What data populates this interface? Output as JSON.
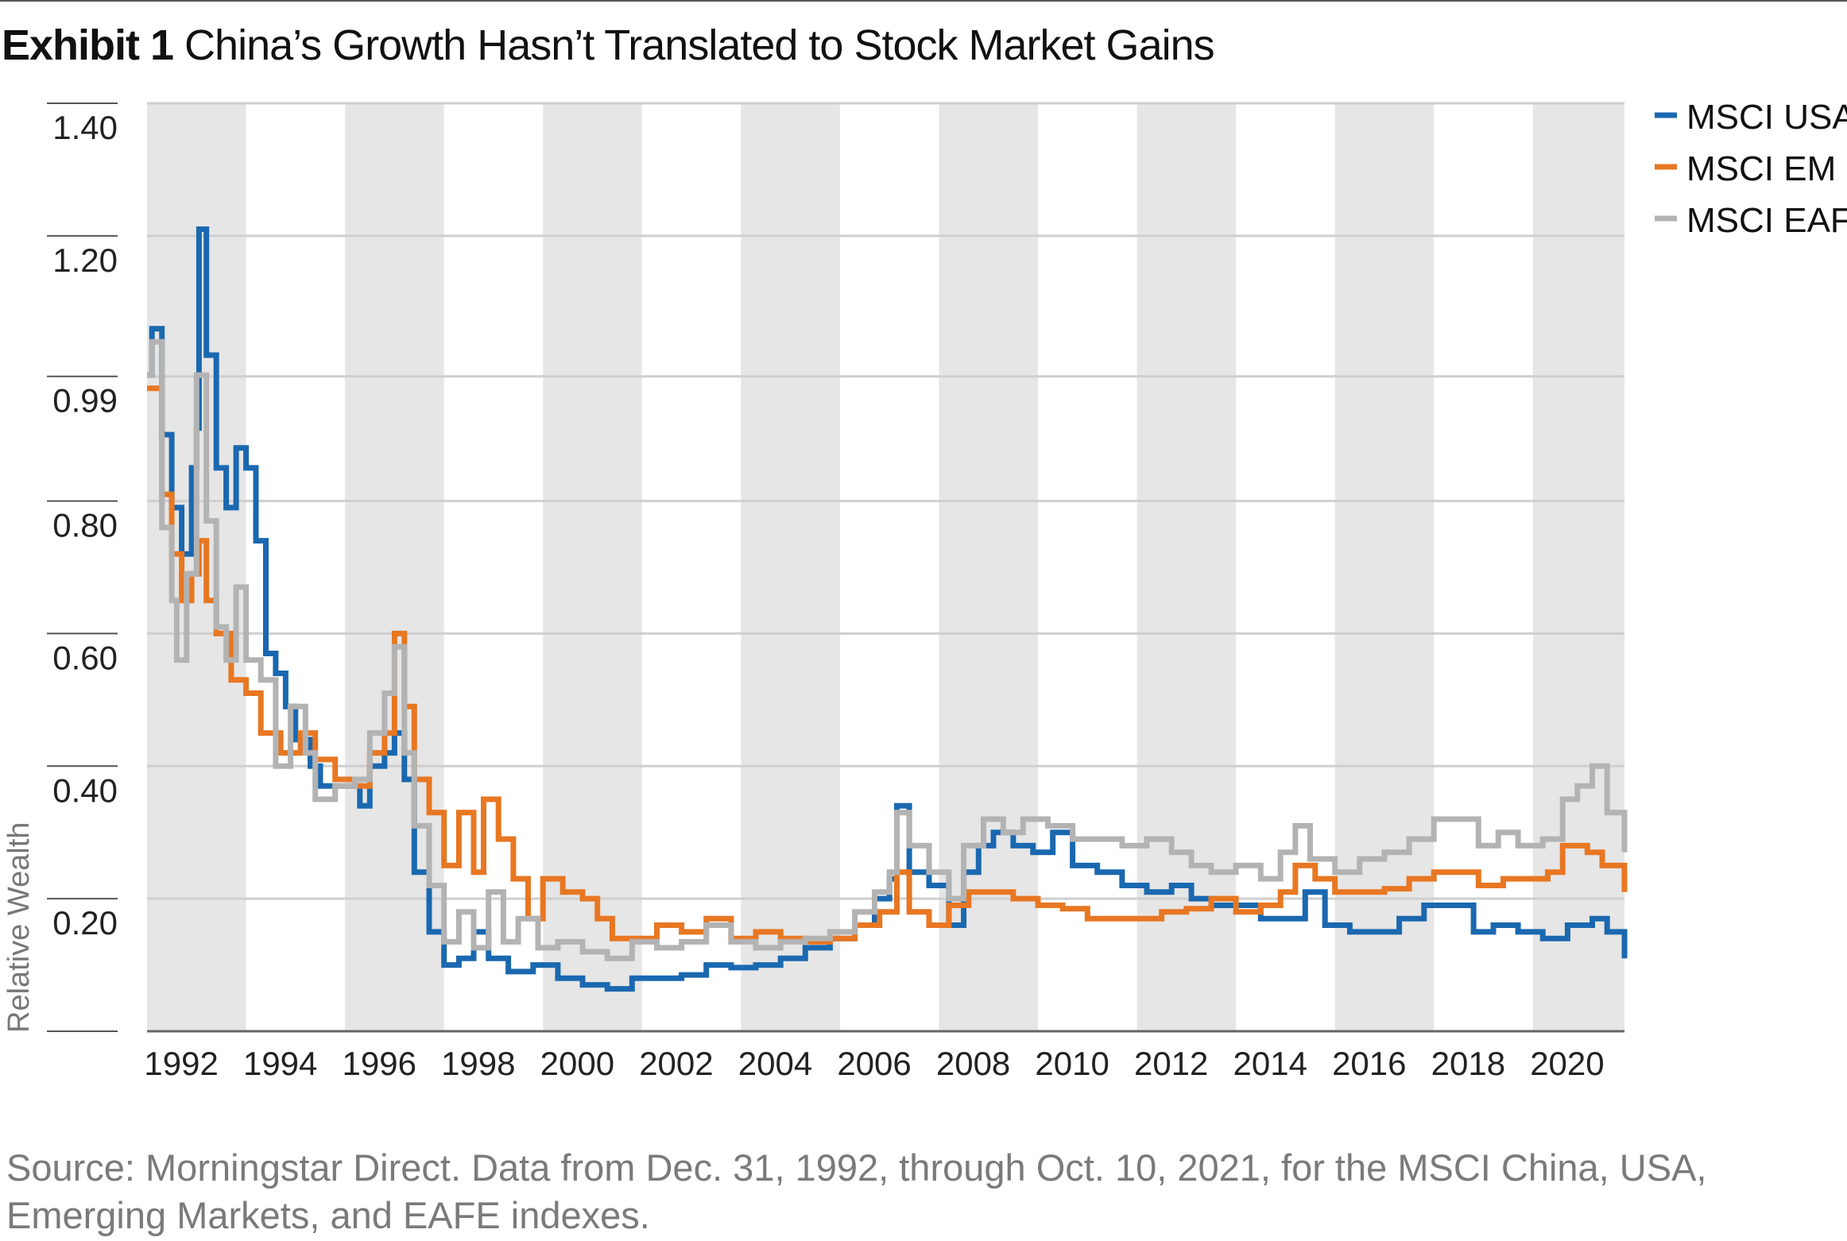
{
  "header": {
    "exhibit": "Exhibit 1",
    "title": "China’s Growth Hasn’t Translated to Stock Market Gains"
  },
  "source": "Source: Morningstar Direct. Data from Dec. 31, 1992, through Oct. 10, 2021, for the MSCI China, USA, Emerging Markets, and EAFE indexes.",
  "chart_data": {
    "type": "line",
    "title": "China’s Growth Hasn’t Translated to Stock Market Gains",
    "xlabel": "",
    "ylabel": "Relative Wealth",
    "xlim": [
      1991.5,
      2021.35
    ],
    "ylim": [
      0,
      1.4
    ],
    "grid": true,
    "alternating_shaded_bands": true,
    "legend_position": "right",
    "x_ticks": [
      "1992",
      "1994",
      "1996",
      "1998",
      "2000",
      "2002",
      "2004",
      "2006",
      "2008",
      "2010",
      "2012",
      "2014",
      "2016",
      "2018",
      "2020"
    ],
    "y_ticks": [
      {
        "value": 0.2,
        "label": "0.20"
      },
      {
        "value": 0.4,
        "label": "0.40"
      },
      {
        "value": 0.6,
        "label": "0.60"
      },
      {
        "value": 0.8,
        "label": "0.80"
      },
      {
        "value": 0.99,
        "label": "0.99"
      },
      {
        "value": 1.2,
        "label": "1.20"
      },
      {
        "value": 1.4,
        "label": "1.40"
      }
    ],
    "series": [
      {
        "name": "MSCI USA",
        "color": "#1a68b0",
        "points": [
          [
            1991.5,
            0.99
          ],
          [
            1991.6,
            1.06
          ],
          [
            1991.8,
            0.9
          ],
          [
            1992.0,
            0.79
          ],
          [
            1992.2,
            0.72
          ],
          [
            1992.4,
            0.85
          ],
          [
            1992.5,
            0.91
          ],
          [
            1992.55,
            1.21
          ],
          [
            1992.7,
            1.02
          ],
          [
            1992.9,
            0.85
          ],
          [
            1993.1,
            0.79
          ],
          [
            1993.3,
            0.88
          ],
          [
            1993.5,
            0.85
          ],
          [
            1993.7,
            0.74
          ],
          [
            1993.9,
            0.57
          ],
          [
            1994.1,
            0.54
          ],
          [
            1994.3,
            0.49
          ],
          [
            1994.5,
            0.44
          ],
          [
            1994.8,
            0.4
          ],
          [
            1995.0,
            0.37
          ],
          [
            1995.5,
            0.37
          ],
          [
            1995.8,
            0.34
          ],
          [
            1996.0,
            0.4
          ],
          [
            1996.3,
            0.42
          ],
          [
            1996.5,
            0.45
          ],
          [
            1996.7,
            0.38
          ],
          [
            1996.9,
            0.24
          ],
          [
            1997.2,
            0.15
          ],
          [
            1997.5,
            0.1
          ],
          [
            1997.8,
            0.11
          ],
          [
            1998.1,
            0.15
          ],
          [
            1998.4,
            0.11
          ],
          [
            1998.8,
            0.09
          ],
          [
            1999.3,
            0.1
          ],
          [
            1999.8,
            0.08
          ],
          [
            2000.3,
            0.07
          ],
          [
            2000.8,
            0.064
          ],
          [
            2001.3,
            0.08
          ],
          [
            2001.8,
            0.08
          ],
          [
            2002.3,
            0.085
          ],
          [
            2002.8,
            0.1
          ],
          [
            2003.3,
            0.096
          ],
          [
            2003.8,
            0.1
          ],
          [
            2004.3,
            0.11
          ],
          [
            2004.8,
            0.126
          ],
          [
            2005.3,
            0.14
          ],
          [
            2005.8,
            0.16
          ],
          [
            2006.2,
            0.2
          ],
          [
            2006.5,
            0.23
          ],
          [
            2006.65,
            0.34
          ],
          [
            2006.9,
            0.24
          ],
          [
            2007.3,
            0.22
          ],
          [
            2007.7,
            0.16
          ],
          [
            2008.0,
            0.24
          ],
          [
            2008.3,
            0.28
          ],
          [
            2008.6,
            0.3
          ],
          [
            2009.0,
            0.28
          ],
          [
            2009.4,
            0.27
          ],
          [
            2009.8,
            0.3
          ],
          [
            2010.2,
            0.25
          ],
          [
            2010.7,
            0.24
          ],
          [
            2011.2,
            0.22
          ],
          [
            2011.7,
            0.21
          ],
          [
            2012.2,
            0.22
          ],
          [
            2012.6,
            0.2
          ],
          [
            2013.0,
            0.19
          ],
          [
            2013.5,
            0.19
          ],
          [
            2014.0,
            0.17
          ],
          [
            2014.5,
            0.17
          ],
          [
            2014.9,
            0.21
          ],
          [
            2015.3,
            0.16
          ],
          [
            2015.8,
            0.15
          ],
          [
            2016.3,
            0.15
          ],
          [
            2016.8,
            0.17
          ],
          [
            2017.3,
            0.19
          ],
          [
            2017.8,
            0.19
          ],
          [
            2018.3,
            0.15
          ],
          [
            2018.7,
            0.16
          ],
          [
            2019.2,
            0.15
          ],
          [
            2019.7,
            0.14
          ],
          [
            2020.2,
            0.16
          ],
          [
            2020.7,
            0.17
          ],
          [
            2021.0,
            0.15
          ],
          [
            2021.35,
            0.11
          ]
        ]
      },
      {
        "name": "MSCI EM",
        "color": "#e87722",
        "points": [
          [
            1991.5,
            0.97
          ],
          [
            1991.8,
            0.81
          ],
          [
            1992.0,
            0.72
          ],
          [
            1992.2,
            0.65
          ],
          [
            1992.4,
            0.69
          ],
          [
            1992.55,
            0.74
          ],
          [
            1992.7,
            0.65
          ],
          [
            1992.9,
            0.6
          ],
          [
            1993.2,
            0.53
          ],
          [
            1993.5,
            0.51
          ],
          [
            1993.8,
            0.45
          ],
          [
            1994.2,
            0.42
          ],
          [
            1994.6,
            0.45
          ],
          [
            1994.9,
            0.41
          ],
          [
            1995.3,
            0.38
          ],
          [
            1995.7,
            0.37
          ],
          [
            1996.0,
            0.42
          ],
          [
            1996.3,
            0.45
          ],
          [
            1996.5,
            0.6
          ],
          [
            1996.7,
            0.49
          ],
          [
            1996.9,
            0.38
          ],
          [
            1997.2,
            0.33
          ],
          [
            1997.5,
            0.25
          ],
          [
            1997.8,
            0.33
          ],
          [
            1998.1,
            0.24
          ],
          [
            1998.3,
            0.35
          ],
          [
            1998.6,
            0.29
          ],
          [
            1998.9,
            0.23
          ],
          [
            1999.2,
            0.17
          ],
          [
            1999.5,
            0.23
          ],
          [
            1999.9,
            0.21
          ],
          [
            2000.3,
            0.2
          ],
          [
            2000.6,
            0.17
          ],
          [
            2000.9,
            0.14
          ],
          [
            2001.3,
            0.14
          ],
          [
            2001.8,
            0.16
          ],
          [
            2002.3,
            0.15
          ],
          [
            2002.8,
            0.17
          ],
          [
            2003.3,
            0.14
          ],
          [
            2003.8,
            0.15
          ],
          [
            2004.3,
            0.14
          ],
          [
            2004.8,
            0.135
          ],
          [
            2005.3,
            0.14
          ],
          [
            2005.8,
            0.16
          ],
          [
            2006.3,
            0.18
          ],
          [
            2006.65,
            0.24
          ],
          [
            2006.9,
            0.18
          ],
          [
            2007.3,
            0.16
          ],
          [
            2007.7,
            0.19
          ],
          [
            2008.1,
            0.21
          ],
          [
            2008.6,
            0.21
          ],
          [
            2009.0,
            0.2
          ],
          [
            2009.5,
            0.19
          ],
          [
            2010.0,
            0.185
          ],
          [
            2010.5,
            0.17
          ],
          [
            2011.0,
            0.17
          ],
          [
            2011.5,
            0.17
          ],
          [
            2012.0,
            0.18
          ],
          [
            2012.5,
            0.185
          ],
          [
            2013.0,
            0.2
          ],
          [
            2013.5,
            0.18
          ],
          [
            2014.0,
            0.19
          ],
          [
            2014.4,
            0.21
          ],
          [
            2014.7,
            0.25
          ],
          [
            2015.1,
            0.23
          ],
          [
            2015.5,
            0.21
          ],
          [
            2016.0,
            0.21
          ],
          [
            2016.5,
            0.215
          ],
          [
            2017.0,
            0.23
          ],
          [
            2017.5,
            0.24
          ],
          [
            2018.0,
            0.24
          ],
          [
            2018.4,
            0.22
          ],
          [
            2018.9,
            0.23
          ],
          [
            2019.4,
            0.23
          ],
          [
            2019.8,
            0.24
          ],
          [
            2020.1,
            0.28
          ],
          [
            2020.6,
            0.27
          ],
          [
            2020.9,
            0.25
          ],
          [
            2021.35,
            0.21
          ]
        ]
      },
      {
        "name": "MSCI EAFE",
        "color": "#b3b3b3",
        "points": [
          [
            1991.5,
            0.99
          ],
          [
            1991.6,
            1.04
          ],
          [
            1991.8,
            0.76
          ],
          [
            1992.0,
            0.65
          ],
          [
            1992.1,
            0.56
          ],
          [
            1992.3,
            0.69
          ],
          [
            1992.5,
            0.99
          ],
          [
            1992.7,
            0.77
          ],
          [
            1992.9,
            0.61
          ],
          [
            1993.1,
            0.56
          ],
          [
            1993.3,
            0.67
          ],
          [
            1993.5,
            0.56
          ],
          [
            1993.8,
            0.53
          ],
          [
            1994.1,
            0.4
          ],
          [
            1994.4,
            0.49
          ],
          [
            1994.7,
            0.42
          ],
          [
            1994.9,
            0.35
          ],
          [
            1995.3,
            0.37
          ],
          [
            1995.7,
            0.38
          ],
          [
            1996.0,
            0.45
          ],
          [
            1996.3,
            0.51
          ],
          [
            1996.5,
            0.58
          ],
          [
            1996.7,
            0.42
          ],
          [
            1996.9,
            0.31
          ],
          [
            1997.2,
            0.22
          ],
          [
            1997.5,
            0.135
          ],
          [
            1997.8,
            0.18
          ],
          [
            1998.1,
            0.126
          ],
          [
            1998.4,
            0.21
          ],
          [
            1998.7,
            0.135
          ],
          [
            1999.0,
            0.17
          ],
          [
            1999.4,
            0.126
          ],
          [
            1999.8,
            0.135
          ],
          [
            2000.3,
            0.12
          ],
          [
            2000.8,
            0.11
          ],
          [
            2001.3,
            0.135
          ],
          [
            2001.8,
            0.126
          ],
          [
            2002.3,
            0.135
          ],
          [
            2002.8,
            0.16
          ],
          [
            2003.3,
            0.135
          ],
          [
            2003.8,
            0.126
          ],
          [
            2004.3,
            0.135
          ],
          [
            2004.8,
            0.14
          ],
          [
            2005.3,
            0.15
          ],
          [
            2005.8,
            0.18
          ],
          [
            2006.2,
            0.21
          ],
          [
            2006.5,
            0.24
          ],
          [
            2006.65,
            0.33
          ],
          [
            2006.9,
            0.28
          ],
          [
            2007.3,
            0.24
          ],
          [
            2007.7,
            0.2
          ],
          [
            2008.0,
            0.28
          ],
          [
            2008.4,
            0.32
          ],
          [
            2008.8,
            0.3
          ],
          [
            2009.2,
            0.32
          ],
          [
            2009.7,
            0.31
          ],
          [
            2010.2,
            0.29
          ],
          [
            2010.7,
            0.29
          ],
          [
            2011.2,
            0.28
          ],
          [
            2011.7,
            0.29
          ],
          [
            2012.2,
            0.27
          ],
          [
            2012.6,
            0.25
          ],
          [
            2013.0,
            0.24
          ],
          [
            2013.5,
            0.25
          ],
          [
            2014.0,
            0.23
          ],
          [
            2014.4,
            0.27
          ],
          [
            2014.7,
            0.31
          ],
          [
            2015.0,
            0.26
          ],
          [
            2015.5,
            0.24
          ],
          [
            2016.0,
            0.26
          ],
          [
            2016.5,
            0.27
          ],
          [
            2017.0,
            0.29
          ],
          [
            2017.5,
            0.32
          ],
          [
            2018.0,
            0.32
          ],
          [
            2018.4,
            0.28
          ],
          [
            2018.8,
            0.3
          ],
          [
            2019.2,
            0.28
          ],
          [
            2019.7,
            0.29
          ],
          [
            2020.1,
            0.35
          ],
          [
            2020.4,
            0.37
          ],
          [
            2020.7,
            0.4
          ],
          [
            2021.0,
            0.33
          ],
          [
            2021.35,
            0.27
          ]
        ]
      }
    ]
  }
}
